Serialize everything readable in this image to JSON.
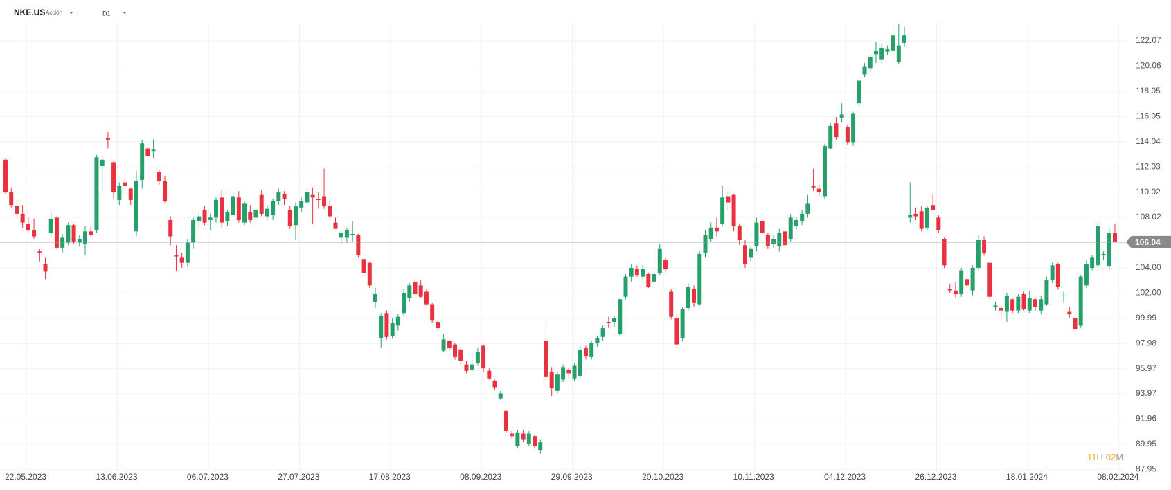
{
  "chart_data": {
    "type": "candlestick",
    "symbol": "NKE.US",
    "instrument_type": "Acción",
    "timeframe": "D1",
    "countdown": [
      "11",
      "H",
      "02",
      "M"
    ],
    "last_price": 106.04,
    "up_color": "#26a06a",
    "down_color": "#e8323f",
    "grid": true,
    "ylim": [
      87.8,
      123.5
    ],
    "yticks": [
      87.95,
      89.95,
      91.96,
      93.97,
      95.97,
      97.98,
      99.99,
      {
        "value": 102.0,
        "label": "102.00"
      },
      {
        "value": 104.0,
        "label": "104.00"
      },
      108.02,
      110.02,
      112.03,
      114.04,
      116.05,
      118.05,
      120.06,
      122.07
    ],
    "categories": [
      "22.05.2023",
      null,
      null,
      null,
      null,
      null,
      null,
      null,
      null,
      null,
      null,
      null,
      null,
      null,
      null,
      null,
      "13.06.2023",
      null,
      null,
      null,
      null,
      null,
      null,
      null,
      null,
      null,
      null,
      null,
      null,
      null,
      null,
      null,
      "06.07.2023",
      null,
      null,
      null,
      null,
      null,
      null,
      null,
      null,
      null,
      null,
      null,
      null,
      null,
      null,
      null,
      "27.07.2023",
      null,
      null,
      null,
      null,
      null,
      null,
      null,
      null,
      null,
      null,
      null,
      null,
      null,
      null,
      null,
      "17.08.2023",
      null,
      null,
      null,
      null,
      null,
      null,
      null,
      null,
      null,
      null,
      null,
      null,
      null,
      null,
      null,
      "08.09.2023",
      null,
      null,
      null,
      null,
      null,
      null,
      null,
      null,
      null,
      null,
      null,
      null,
      null,
      null,
      null,
      "29.09.2023",
      null,
      null,
      null,
      null,
      null,
      null,
      null,
      null,
      null,
      null,
      null,
      null,
      null,
      null,
      null,
      "20.10.2023",
      null,
      null,
      null,
      null,
      null,
      null,
      null,
      null,
      null,
      null,
      null,
      null,
      null,
      null,
      null,
      "10.11.2023",
      null,
      null,
      null,
      null,
      null,
      null,
      null,
      null,
      null,
      null,
      null,
      null,
      null,
      null,
      null,
      "04.12.2023",
      null,
      null,
      null,
      null,
      null,
      null,
      null,
      null,
      null,
      null,
      null,
      null,
      null,
      null,
      null,
      "26.12.2023",
      null,
      null,
      null,
      null,
      null,
      null,
      null,
      null,
      null,
      null,
      null,
      null,
      null,
      null,
      null,
      "18.01.2024",
      null,
      null,
      null,
      null,
      null,
      null,
      null,
      null,
      null,
      null,
      null,
      null,
      null,
      null,
      null,
      "08.02.2024",
      null,
      null,
      null
    ],
    "ohlc": [
      [
        112.6,
        112.7,
        109.9,
        110.0
      ],
      [
        110.0,
        110.4,
        108.8,
        109.0
      ],
      [
        108.9,
        109.4,
        107.9,
        108.3
      ],
      [
        108.3,
        109.0,
        107.2,
        107.6
      ],
      [
        107.5,
        108.0,
        106.9,
        107.0
      ],
      [
        107.0,
        107.9,
        106.3,
        106.5
      ],
      [
        105.3,
        105.5,
        104.5,
        105.2
      ],
      [
        104.3,
        104.8,
        103.1,
        103.7
      ],
      [
        106.8,
        108.4,
        106.5,
        107.9
      ],
      [
        108.0,
        108.1,
        105.5,
        105.6
      ],
      [
        105.6,
        106.7,
        105.2,
        106.4
      ],
      [
        106.0,
        107.6,
        105.8,
        107.4
      ],
      [
        107.4,
        107.5,
        105.9,
        106.1
      ],
      [
        106.0,
        106.6,
        105.7,
        106.3
      ],
      [
        105.9,
        107.3,
        105.0,
        106.9
      ],
      [
        106.9,
        107.3,
        106.4,
        106.6
      ],
      [
        107.0,
        113.0,
        106.8,
        112.8
      ],
      [
        112.1,
        112.9,
        110.2,
        112.6
      ],
      [
        114.3,
        114.8,
        113.5,
        114.2
      ],
      [
        112.4,
        112.5,
        109.5,
        110.0
      ],
      [
        109.4,
        110.8,
        109.0,
        110.5
      ],
      [
        110.8,
        111.2,
        109.9,
        110.5
      ],
      [
        110.3,
        110.4,
        109.0,
        109.4
      ],
      [
        106.9,
        111.7,
        106.5,
        110.9
      ],
      [
        111.0,
        114.2,
        110.3,
        113.9
      ],
      [
        113.5,
        113.6,
        112.6,
        112.9
      ],
      [
        113.3,
        114.2,
        112.7,
        113.4
      ],
      [
        111.6,
        111.8,
        110.6,
        110.9
      ],
      [
        110.9,
        111.3,
        109.2,
        109.3
      ],
      [
        107.8,
        108.1,
        105.8,
        106.5
      ],
      [
        105.0,
        105.8,
        103.7,
        104.9
      ],
      [
        104.8,
        105.2,
        104.0,
        104.4
      ],
      [
        104.4,
        106.3,
        104.1,
        106.0
      ],
      [
        106.0,
        108.0,
        105.5,
        107.8
      ],
      [
        107.7,
        108.4,
        107.2,
        108.1
      ],
      [
        108.6,
        108.9,
        107.4,
        107.6
      ],
      [
        107.8,
        108.3,
        107.0,
        108.0
      ],
      [
        108.0,
        109.6,
        107.6,
        109.4
      ],
      [
        109.6,
        110.2,
        107.2,
        107.6
      ],
      [
        107.7,
        108.6,
        107.3,
        108.4
      ],
      [
        108.2,
        110.0,
        108.0,
        109.7
      ],
      [
        109.6,
        110.1,
        107.6,
        107.8
      ],
      [
        107.6,
        109.3,
        107.4,
        109.1
      ],
      [
        108.4,
        109.0,
        107.6,
        107.8
      ],
      [
        108.0,
        108.8,
        107.6,
        108.6
      ],
      [
        109.8,
        110.2,
        108.1,
        108.3
      ],
      [
        108.1,
        109.0,
        107.8,
        108.7
      ],
      [
        108.2,
        109.5,
        107.8,
        109.3
      ],
      [
        109.3,
        110.3,
        109.0,
        110.0
      ],
      [
        109.9,
        110.1,
        109.0,
        109.5
      ],
      [
        108.6,
        108.9,
        107.1,
        107.3
      ],
      [
        107.4,
        109.2,
        106.2,
        108.9
      ],
      [
        108.8,
        109.6,
        108.4,
        109.3
      ],
      [
        109.2,
        110.3,
        109.0,
        110.0
      ],
      [
        109.8,
        110.4,
        107.5,
        109.6
      ],
      [
        109.5,
        110.0,
        108.7,
        109.4
      ],
      [
        109.7,
        111.9,
        108.7,
        108.9
      ],
      [
        108.9,
        109.5,
        107.9,
        108.1
      ],
      [
        107.6,
        108.0,
        107.1,
        107.1
      ],
      [
        106.4,
        106.9,
        105.9,
        106.8
      ],
      [
        106.4,
        107.2,
        106.0,
        107.0
      ],
      [
        106.6,
        107.7,
        106.1,
        106.7
      ],
      [
        106.6,
        106.7,
        104.8,
        105.0
      ],
      [
        104.7,
        104.8,
        103.3,
        103.6
      ],
      [
        104.4,
        104.5,
        102.4,
        102.6
      ],
      [
        101.3,
        102.4,
        100.8,
        101.9
      ],
      [
        98.4,
        100.4,
        97.6,
        100.2
      ],
      [
        100.4,
        100.6,
        98.3,
        98.5
      ],
      [
        98.6,
        100.0,
        98.4,
        99.6
      ],
      [
        99.4,
        100.3,
        99.0,
        100.1
      ],
      [
        100.4,
        102.3,
        100.2,
        102.0
      ],
      [
        101.6,
        102.8,
        101.3,
        102.6
      ],
      [
        102.9,
        103.0,
        101.8,
        101.9
      ],
      [
        102.6,
        103.0,
        101.6,
        101.7
      ],
      [
        102.1,
        102.3,
        101.0,
        101.1
      ],
      [
        101.1,
        101.2,
        99.6,
        99.8
      ],
      [
        99.7,
        99.9,
        98.9,
        99.2
      ],
      [
        97.4,
        98.7,
        97.3,
        98.3
      ],
      [
        98.2,
        98.3,
        97.4,
        97.6
      ],
      [
        97.9,
        98.0,
        96.7,
        96.9
      ],
      [
        97.5,
        97.6,
        96.3,
        96.6
      ],
      [
        96.3,
        96.6,
        95.6,
        95.8
      ],
      [
        95.9,
        96.7,
        95.7,
        96.3
      ],
      [
        96.4,
        97.6,
        96.2,
        97.3
      ],
      [
        97.8,
        97.9,
        95.7,
        96.0
      ],
      [
        95.8,
        96.0,
        95.1,
        95.2
      ],
      [
        95.0,
        95.1,
        94.3,
        94.5
      ],
      [
        93.6,
        94.2,
        93.5,
        94.0
      ],
      [
        92.6,
        92.7,
        90.9,
        91.0
      ],
      [
        90.8,
        91.0,
        90.4,
        90.6
      ],
      [
        89.8,
        91.1,
        89.6,
        90.9
      ],
      [
        90.8,
        91.1,
        90.1,
        90.3
      ],
      [
        90.0,
        91.0,
        89.8,
        90.8
      ],
      [
        90.6,
        90.7,
        89.6,
        89.8
      ],
      [
        89.5,
        90.3,
        89.2,
        90.1
      ],
      [
        98.2,
        99.4,
        94.6,
        95.3
      ],
      [
        95.7,
        96.1,
        93.8,
        94.4
      ],
      [
        94.2,
        95.7,
        94.0,
        95.5
      ],
      [
        95.1,
        96.3,
        94.9,
        96.1
      ],
      [
        95.9,
        96.0,
        95.2,
        95.6
      ],
      [
        95.2,
        96.4,
        95.0,
        96.2
      ],
      [
        95.4,
        97.8,
        95.2,
        97.5
      ],
      [
        97.6,
        97.8,
        96.7,
        97.0
      ],
      [
        96.9,
        98.2,
        96.7,
        98.0
      ],
      [
        98.0,
        98.6,
        97.7,
        98.4
      ],
      [
        98.5,
        99.4,
        98.2,
        99.2
      ],
      [
        99.7,
        100.1,
        99.2,
        99.6
      ],
      [
        99.7,
        100.2,
        99.3,
        100.0
      ],
      [
        98.7,
        101.6,
        98.6,
        101.5
      ],
      [
        101.7,
        103.5,
        101.5,
        103.3
      ],
      [
        103.3,
        104.3,
        102.9,
        104.0
      ],
      [
        103.9,
        104.2,
        103.3,
        103.4
      ],
      [
        103.3,
        104.2,
        103.1,
        103.9
      ],
      [
        103.5,
        103.6,
        102.4,
        102.5
      ],
      [
        102.9,
        103.6,
        102.4,
        103.5
      ],
      [
        103.6,
        105.9,
        103.4,
        105.5
      ],
      [
        104.6,
        104.8,
        103.7,
        103.9
      ],
      [
        102.1,
        102.3,
        99.9,
        100.1
      ],
      [
        100.0,
        100.3,
        97.6,
        97.9
      ],
      [
        98.4,
        100.9,
        98.2,
        100.7
      ],
      [
        100.8,
        102.8,
        100.6,
        102.5
      ],
      [
        102.3,
        102.6,
        100.9,
        101.2
      ],
      [
        101.1,
        105.3,
        101.0,
        105.1
      ],
      [
        105.2,
        107.0,
        104.8,
        106.6
      ],
      [
        106.3,
        107.6,
        106.1,
        107.2
      ],
      [
        107.2,
        108.0,
        106.5,
        106.9
      ],
      [
        107.5,
        110.5,
        107.3,
        109.6
      ],
      [
        109.7,
        110.0,
        108.6,
        109.2
      ],
      [
        109.8,
        109.9,
        106.9,
        107.3
      ],
      [
        107.3,
        107.5,
        105.8,
        106.2
      ],
      [
        105.8,
        106.2,
        104.0,
        104.3
      ],
      [
        104.8,
        105.7,
        104.5,
        105.5
      ],
      [
        105.7,
        108.0,
        105.3,
        107.6
      ],
      [
        107.7,
        107.9,
        106.6,
        106.8
      ],
      [
        106.6,
        106.8,
        105.5,
        105.7
      ],
      [
        105.9,
        106.6,
        105.6,
        106.3
      ],
      [
        105.7,
        107.1,
        105.3,
        106.8
      ],
      [
        106.9,
        107.2,
        105.6,
        105.8
      ],
      [
        106.3,
        108.3,
        106.1,
        108.0
      ],
      [
        107.3,
        108.0,
        107.0,
        107.8
      ],
      [
        107.7,
        108.6,
        107.4,
        108.3
      ],
      [
        108.3,
        109.8,
        108.0,
        109.1
      ],
      [
        110.5,
        111.9,
        110.1,
        110.4
      ],
      [
        110.3,
        110.6,
        109.7,
        110.0
      ],
      [
        109.7,
        113.9,
        109.5,
        113.7
      ],
      [
        113.5,
        115.5,
        113.4,
        115.3
      ],
      [
        115.5,
        116.0,
        114.2,
        114.4
      ],
      [
        115.9,
        117.1,
        115.6,
        116.2
      ],
      [
        115.2,
        115.4,
        113.8,
        114.0
      ],
      [
        114.0,
        116.4,
        113.7,
        116.3
      ],
      [
        117.1,
        119.0,
        116.9,
        118.9
      ],
      [
        119.4,
        120.3,
        119.2,
        120.0
      ],
      [
        119.9,
        121.0,
        119.6,
        120.8
      ],
      [
        121.0,
        122.0,
        120.3,
        121.3
      ],
      [
        120.6,
        121.8,
        120.3,
        121.5
      ],
      [
        121.2,
        121.7,
        120.9,
        121.4
      ],
      [
        121.3,
        123.2,
        121.1,
        122.5
      ],
      [
        120.4,
        123.4,
        120.2,
        121.7
      ],
      [
        121.9,
        123.2,
        121.6,
        122.5
      ],
      [
        108.0,
        110.8,
        107.6,
        108.2
      ],
      [
        108.3,
        108.8,
        107.8,
        108.1
      ],
      [
        108.5,
        108.9,
        106.9,
        107.1
      ],
      [
        107.2,
        108.9,
        107.0,
        108.8
      ],
      [
        109.0,
        109.9,
        108.6,
        108.6
      ],
      [
        108.0,
        108.2,
        106.8,
        107.0
      ],
      [
        106.3,
        106.4,
        104.0,
        104.2
      ],
      [
        102.3,
        102.7,
        102.0,
        102.2
      ],
      [
        102.2,
        102.9,
        101.6,
        101.9
      ],
      [
        101.9,
        104.0,
        101.7,
        103.8
      ],
      [
        103.1,
        103.3,
        102.4,
        102.6
      ],
      [
        102.2,
        104.2,
        101.8,
        104.0
      ],
      [
        104.0,
        106.6,
        103.8,
        106.2
      ],
      [
        106.2,
        106.5,
        105.0,
        105.2
      ],
      [
        104.4,
        104.5,
        101.5,
        101.7
      ],
      [
        100.9,
        101.3,
        100.6,
        101.0
      ],
      [
        100.8,
        101.0,
        100.1,
        100.6
      ],
      [
        100.5,
        102.0,
        99.7,
        101.8
      ],
      [
        101.5,
        101.6,
        100.4,
        100.6
      ],
      [
        100.6,
        101.9,
        100.4,
        101.7
      ],
      [
        101.9,
        102.1,
        100.6,
        100.7
      ],
      [
        100.6,
        102.2,
        100.4,
        101.6
      ],
      [
        101.5,
        101.6,
        100.6,
        100.9
      ],
      [
        100.6,
        101.8,
        100.3,
        101.5
      ],
      [
        101.1,
        103.3,
        101.0,
        103.0
      ],
      [
        103.0,
        104.4,
        102.8,
        104.2
      ],
      [
        104.3,
        104.4,
        102.3,
        102.5
      ],
      [
        101.8,
        102.1,
        101.2,
        101.8
      ],
      [
        100.5,
        100.9,
        100.0,
        100.3
      ],
      [
        100.0,
        100.2,
        98.9,
        99.1
      ],
      [
        99.4,
        103.4,
        99.2,
        103.3
      ],
      [
        102.6,
        104.6,
        102.4,
        104.3
      ],
      [
        104.0,
        105.0,
        103.8,
        104.8
      ],
      [
        104.2,
        107.6,
        104.0,
        107.3
      ],
      [
        105.0,
        105.3,
        104.6,
        105.1
      ],
      [
        104.1,
        107.1,
        103.9,
        106.8
      ],
      [
        106.8,
        107.5,
        106.0,
        106.04
      ]
    ]
  }
}
